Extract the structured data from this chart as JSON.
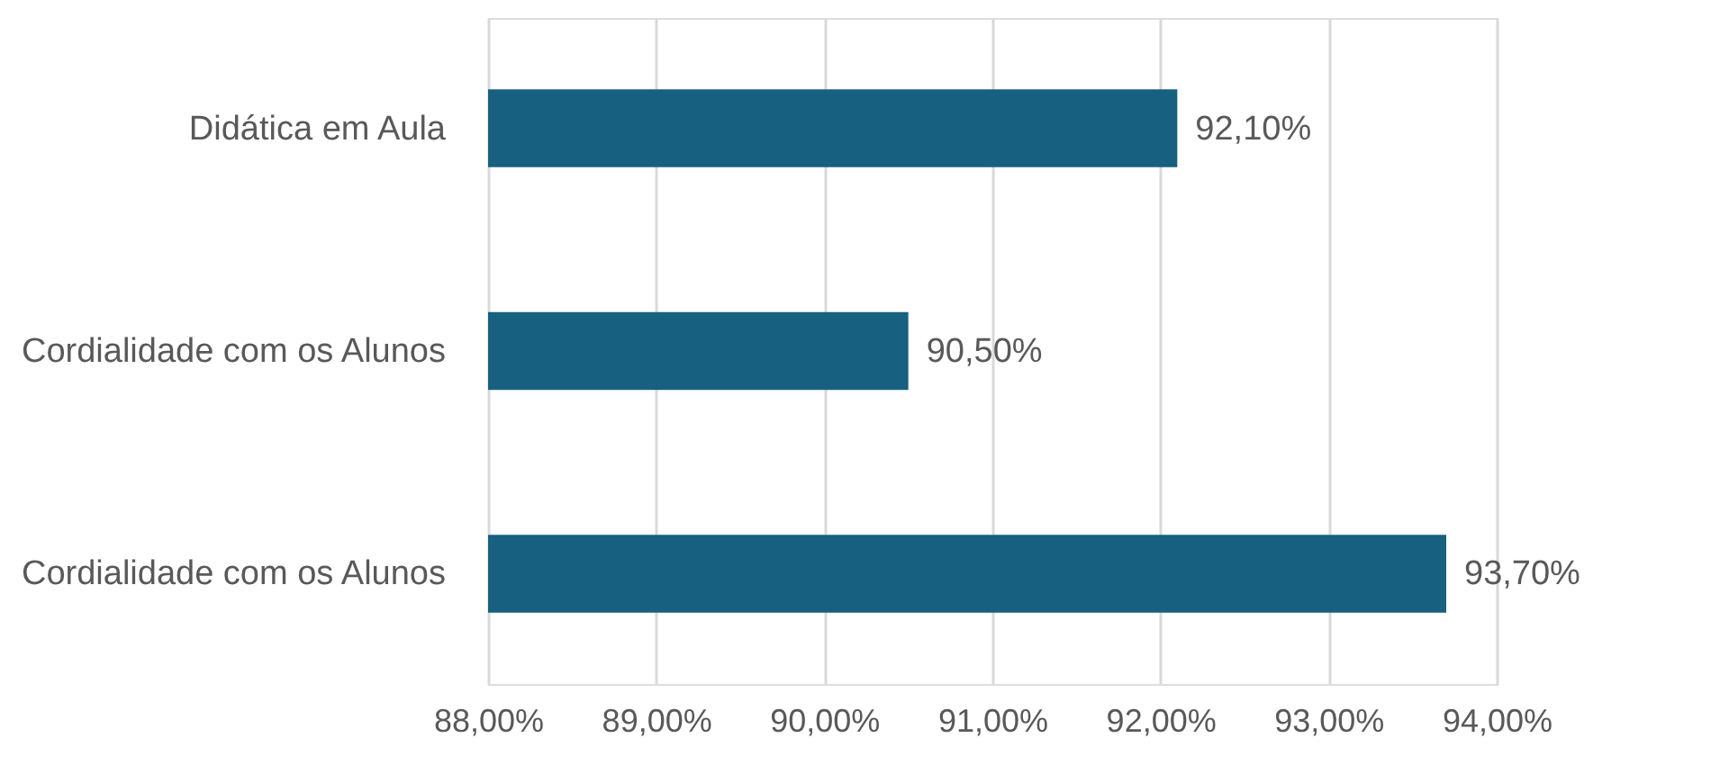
{
  "chart_data": {
    "type": "bar",
    "orientation": "horizontal",
    "categories": [
      "Didática em Aula",
      "Cordialidade com os Alunos",
      "Cordialidade com os Alunos"
    ],
    "values": [
      92.1,
      90.5,
      93.7
    ],
    "value_labels": [
      "92,10%",
      "90,50%",
      "93,70%"
    ],
    "color": "#17607f",
    "xlim": [
      88,
      94
    ],
    "xticks": [
      {
        "value": 88,
        "label": "88,00%"
      },
      {
        "value": 89,
        "label": "89,00%"
      },
      {
        "value": 90,
        "label": "90,00%"
      },
      {
        "value": 91,
        "label": "91,00%"
      },
      {
        "value": 92,
        "label": "92,00%"
      },
      {
        "value": 93,
        "label": "93,00%"
      },
      {
        "value": 94,
        "label": "94,00%"
      }
    ],
    "grid": "x"
  }
}
